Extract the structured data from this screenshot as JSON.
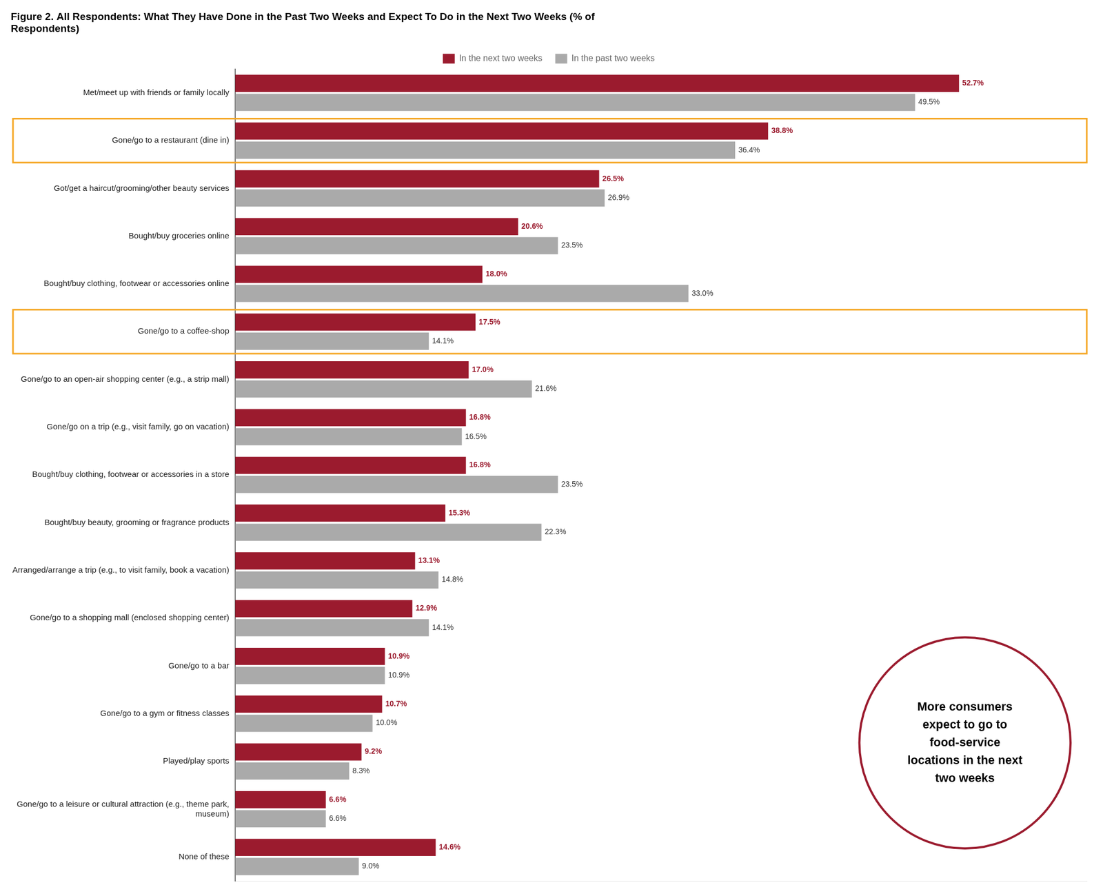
{
  "chart_data": {
    "type": "bar",
    "orientation": "horizontal",
    "title": "Figure 2. All Respondents: What They Have Done in the Past Two Weeks and Expect To Do in the Next Two Weeks (% of\nRespondents)",
    "categories": [
      "Met/meet up with friends or family locally",
      "Gone/go to a restaurant (dine in)",
      "Got/get a haircut/grooming/other beauty services",
      "Bought/buy groceries online",
      "Bought/buy clothing, footwear or accessories online",
      "Gone/go to a coffee-shop",
      "Gone/go to an open-air shopping center (e.g., a strip mall)",
      "Gone/go on a trip (e.g., visit family, go on vacation)",
      "Bought/buy clothing, footwear or accessories in a store",
      "Bought/buy beauty, grooming or fragrance products",
      "Arranged/arrange a trip (e.g., to visit family, book a vacation)",
      "Gone/go to a shopping mall (enclosed shopping center)",
      "Gone/go to a bar",
      "Gone/go to a gym or fitness classes",
      "Played/play sports",
      "Gone/go to a leisure or cultural attraction (e.g., theme park,\nmuseum)",
      "None of these"
    ],
    "series": [
      {
        "name": "In the next two weeks",
        "color": "#9B1B2E",
        "values": [
          52.7,
          38.8,
          26.5,
          20.6,
          18.0,
          17.5,
          17.0,
          16.8,
          16.8,
          15.3,
          13.1,
          12.9,
          10.9,
          10.7,
          9.2,
          6.6,
          14.6
        ],
        "value_labels": [
          "52.7%",
          "38.8%",
          "26.5%",
          "20.6%",
          "18.0%",
          "17.5%",
          "17.0%",
          "16.8%",
          "16.8%",
          "15.3%",
          "13.1%",
          "12.9%",
          "10.9%",
          "10.7%",
          "9.2%",
          "6.6%",
          "14.6%"
        ]
      },
      {
        "name": "In the past two weeks",
        "color": "#AAAAAA",
        "values": [
          49.5,
          36.4,
          26.9,
          23.5,
          33.0,
          14.1,
          21.6,
          16.5,
          23.5,
          22.3,
          14.8,
          14.1,
          10.9,
          10.0,
          8.3,
          6.6,
          9.0
        ],
        "value_labels": [
          "49.5%",
          "36.4%",
          "26.9%",
          "23.5%",
          "33.0%",
          "14.1%",
          "21.6%",
          "16.5%",
          "23.5%",
          "22.3%",
          "14.8%",
          "14.1%",
          "10.9%",
          "10.0%",
          "8.3%",
          "6.6%",
          "9.0%"
        ]
      }
    ],
    "xlim": [
      0,
      62
    ],
    "grid": false,
    "legend": "top",
    "data_labels": true,
    "tick_labels": "y",
    "annotations": [
      {
        "text": "More consumers\nexpect to go to\nfood-service\nlocations in the next\ntwo weeks",
        "categories": [
          "Gone/go to a restaurant (dine in)",
          "Gone/go to a coffee-shop"
        ],
        "color": "#F5A623"
      }
    ]
  }
}
